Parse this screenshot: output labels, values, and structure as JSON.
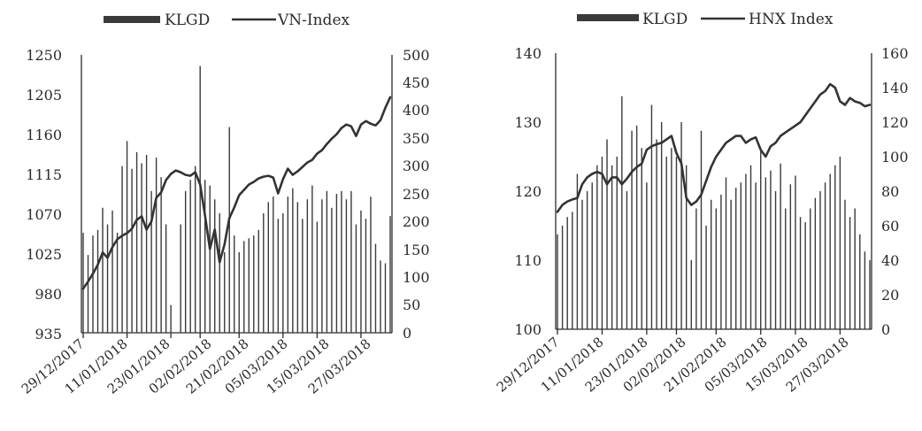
{
  "chart_data": [
    {
      "type": "bar+line",
      "legend": {
        "bar_label": "KLGD",
        "line_label": "VN-Index",
        "placement": "top-center"
      },
      "left_axis": {
        "min": 935,
        "max": 1250,
        "ticks": [
          "1250",
          "1205",
          "1160",
          "1115",
          "1070",
          "1025",
          "980",
          "935"
        ]
      },
      "right_axis": {
        "min": 0,
        "max": 500,
        "ticks": [
          "500",
          "450",
          "400",
          "350",
          "300",
          "250",
          "200",
          "150",
          "100",
          "50",
          "0"
        ]
      },
      "x_tick_labels": [
        "29/12/2017",
        "11/01/2018",
        "23/01/2018",
        "02/02/2018",
        "21/02/2018",
        "05/03/2018",
        "15/03/2018",
        "27/03/2018"
      ],
      "x_tick_index": [
        0,
        9,
        18,
        24,
        32,
        41,
        48,
        57
      ],
      "n_points": 64,
      "bar_values": [
        180,
        140,
        175,
        185,
        225,
        195,
        220,
        180,
        300,
        345,
        295,
        325,
        305,
        320,
        255,
        315,
        280,
        195,
        50,
        0,
        195,
        255,
        275,
        300,
        480,
        275,
        265,
        240,
        215,
        145,
        370,
        175,
        145,
        165,
        170,
        175,
        185,
        215,
        235,
        245,
        205,
        215,
        245,
        260,
        235,
        205,
        240,
        265,
        200,
        240,
        255,
        225,
        250,
        255,
        240,
        255,
        195,
        220,
        205,
        245,
        160,
        130,
        125,
        210
      ],
      "line_values": [
        985,
        993,
        1002,
        1012,
        1026,
        1020,
        1032,
        1041,
        1045,
        1048,
        1053,
        1063,
        1067,
        1052,
        1061,
        1088,
        1094,
        1108,
        1115,
        1119,
        1117,
        1114,
        1113,
        1117,
        1103,
        1068,
        1030,
        1052,
        1015,
        1035,
        1065,
        1077,
        1091,
        1097,
        1103,
        1106,
        1110,
        1112,
        1113,
        1111,
        1093,
        1109,
        1121,
        1114,
        1118,
        1123,
        1128,
        1131,
        1138,
        1142,
        1149,
        1155,
        1160,
        1167,
        1171,
        1169,
        1158,
        1171,
        1175,
        1172,
        1170,
        1176,
        1190,
        1202
      ]
    },
    {
      "type": "bar+line",
      "legend": {
        "bar_label": "KLGD",
        "line_label": "HNX Index",
        "placement": "top-center"
      },
      "left_axis": {
        "min": 100,
        "max": 140,
        "ticks": [
          "140",
          "130",
          "120",
          "110",
          "100"
        ]
      },
      "right_axis": {
        "min": 0,
        "max": 160,
        "ticks": [
          "160",
          "140",
          "120",
          "100",
          "80",
          "60",
          "40",
          "20",
          "0"
        ]
      },
      "x_tick_labels": [
        "29/12/2017",
        "11/01/2018",
        "23/01/2018",
        "02/02/2018",
        "21/02/2018",
        "05/03/2018",
        "15/03/2018",
        "27/03/2018"
      ],
      "x_tick_index": [
        0,
        9,
        18,
        24,
        32,
        41,
        48,
        57
      ],
      "n_points": 64,
      "bar_values": [
        55,
        60,
        65,
        68,
        90,
        75,
        80,
        85,
        95,
        100,
        110,
        95,
        100,
        135,
        80,
        115,
        118,
        105,
        85,
        130,
        110,
        120,
        100,
        105,
        100,
        120,
        95,
        40,
        70,
        115,
        60,
        75,
        70,
        78,
        88,
        75,
        82,
        85,
        90,
        95,
        85,
        105,
        88,
        92,
        80,
        96,
        70,
        84,
        89,
        65,
        62,
        70,
        76,
        80,
        85,
        90,
        95,
        100,
        75,
        65,
        70,
        55,
        45,
        40
      ],
      "line_values": [
        117,
        118,
        118.5,
        118.8,
        119,
        121,
        122,
        122.5,
        122.8,
        122.5,
        121,
        122,
        122,
        121,
        121.8,
        122.8,
        123.5,
        124,
        126,
        126.5,
        126.8,
        127,
        127.5,
        128,
        125.5,
        124,
        119,
        118,
        118.5,
        119.5,
        121.5,
        123.5,
        125,
        126,
        127,
        127.5,
        128,
        128,
        127,
        127.5,
        127.8,
        126,
        125,
        126.5,
        127,
        128,
        128.5,
        129,
        129.5,
        130,
        131,
        132,
        133,
        134,
        134.5,
        135.5,
        135,
        133,
        132.5,
        133.5,
        133,
        132.8,
        132.3,
        132.5
      ]
    }
  ]
}
